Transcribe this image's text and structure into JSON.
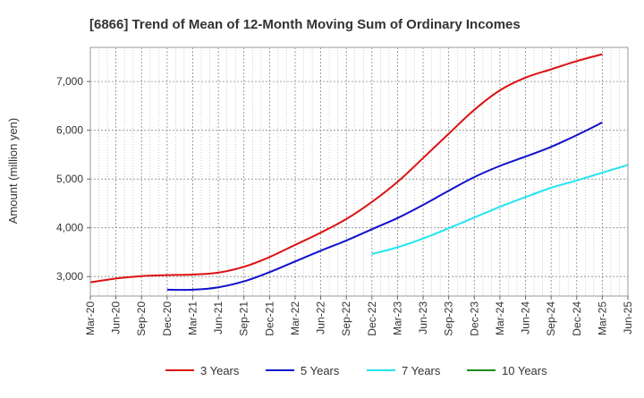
{
  "chart_data": {
    "type": "line",
    "title": "[6866]  Trend of Mean of 12-Month Moving Sum of Ordinary Incomes",
    "xlabel": "",
    "ylabel": "Amount (million yen)",
    "ylim": [
      2600,
      7700
    ],
    "y_ticks": [
      3000,
      4000,
      5000,
      6000,
      7000
    ],
    "y_tick_labels": [
      "3,000",
      "4,000",
      "5,000",
      "6,000",
      "7,000"
    ],
    "x_tick_labels": [
      "Mar-20",
      "Jun-20",
      "Sep-20",
      "Dec-20",
      "Mar-21",
      "Jun-21",
      "Sep-21",
      "Dec-21",
      "Mar-22",
      "Jun-22",
      "Sep-22",
      "Dec-22",
      "Mar-23",
      "Jun-23",
      "Sep-23",
      "Dec-23",
      "Mar-24",
      "Jun-24",
      "Sep-24",
      "Dec-24",
      "Mar-25",
      "Jun-25"
    ],
    "grid": true,
    "legend_position": "bottom",
    "series": [
      {
        "name": "3 Years",
        "color": "#dd1111",
        "start_index": 0,
        "values": [
          2880,
          2960,
          3010,
          3030,
          3040,
          3080,
          3200,
          3400,
          3650,
          3900,
          4180,
          4530,
          4940,
          5430,
          5930,
          6420,
          6820,
          7080,
          7250,
          7420,
          7560
        ]
      },
      {
        "name": "5 Years",
        "color": "#1111cc",
        "start_index": 3,
        "values": [
          2730,
          2730,
          2780,
          2900,
          3090,
          3310,
          3530,
          3740,
          3970,
          4200,
          4470,
          4760,
          5040,
          5270,
          5460,
          5660,
          5900,
          6160
        ]
      },
      {
        "name": "7 Years",
        "color": "#22e5ee",
        "start_index": 11,
        "values": [
          3460,
          3600,
          3780,
          3990,
          4210,
          4430,
          4630,
          4820,
          4970,
          5130,
          5290
        ]
      },
      {
        "name": "10 Years",
        "color": "#228822",
        "start_index": 0,
        "values": []
      }
    ]
  }
}
